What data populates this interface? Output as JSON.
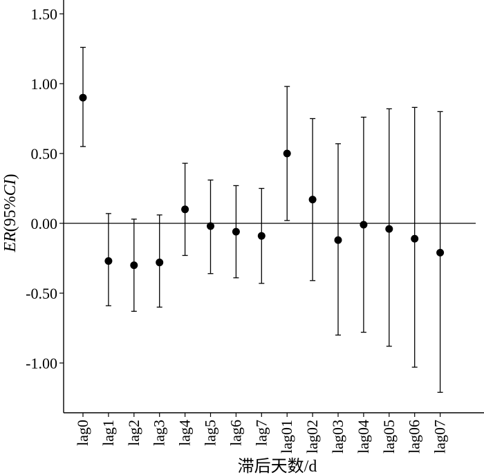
{
  "chart_data": {
    "type": "scatter",
    "xlabel": "滞后天数/d",
    "ylabel": "ER(95%CI)",
    "ylim": [
      -1.35,
      1.6
    ],
    "yticks": [
      "1.50",
      "1.00",
      "0.50",
      "0.00",
      "-0.50",
      "-1.00"
    ],
    "ytick_values": [
      1.5,
      1.0,
      0.5,
      0.0,
      -0.5,
      -1.0
    ],
    "reference_line_y": 0,
    "grid": false,
    "categories": [
      "lag0",
      "lag1",
      "lag2",
      "lag3",
      "lag4",
      "lag5",
      "lag6",
      "lag7",
      "lag01",
      "lag02",
      "lag03",
      "lag04",
      "lag05",
      "lag06",
      "lag07"
    ],
    "series": [
      {
        "values": [
          0.9,
          -0.27,
          -0.3,
          -0.28,
          0.1,
          -0.02,
          -0.06,
          -0.09,
          0.5,
          0.17,
          -0.12,
          -0.01,
          -0.04,
          -0.11,
          -0.21
        ],
        "lower": [
          0.55,
          -0.59,
          -0.63,
          -0.6,
          -0.23,
          -0.36,
          -0.39,
          -0.43,
          0.02,
          -0.41,
          -0.8,
          -0.78,
          -0.88,
          -1.03,
          -1.21
        ],
        "upper": [
          1.26,
          0.07,
          0.03,
          0.06,
          0.43,
          0.31,
          0.27,
          0.25,
          0.98,
          0.75,
          0.57,
          0.76,
          0.82,
          0.83,
          0.8
        ]
      }
    ],
    "colors": {
      "axis": "#000000",
      "point": "#000000",
      "errorbar": "#000000"
    }
  }
}
